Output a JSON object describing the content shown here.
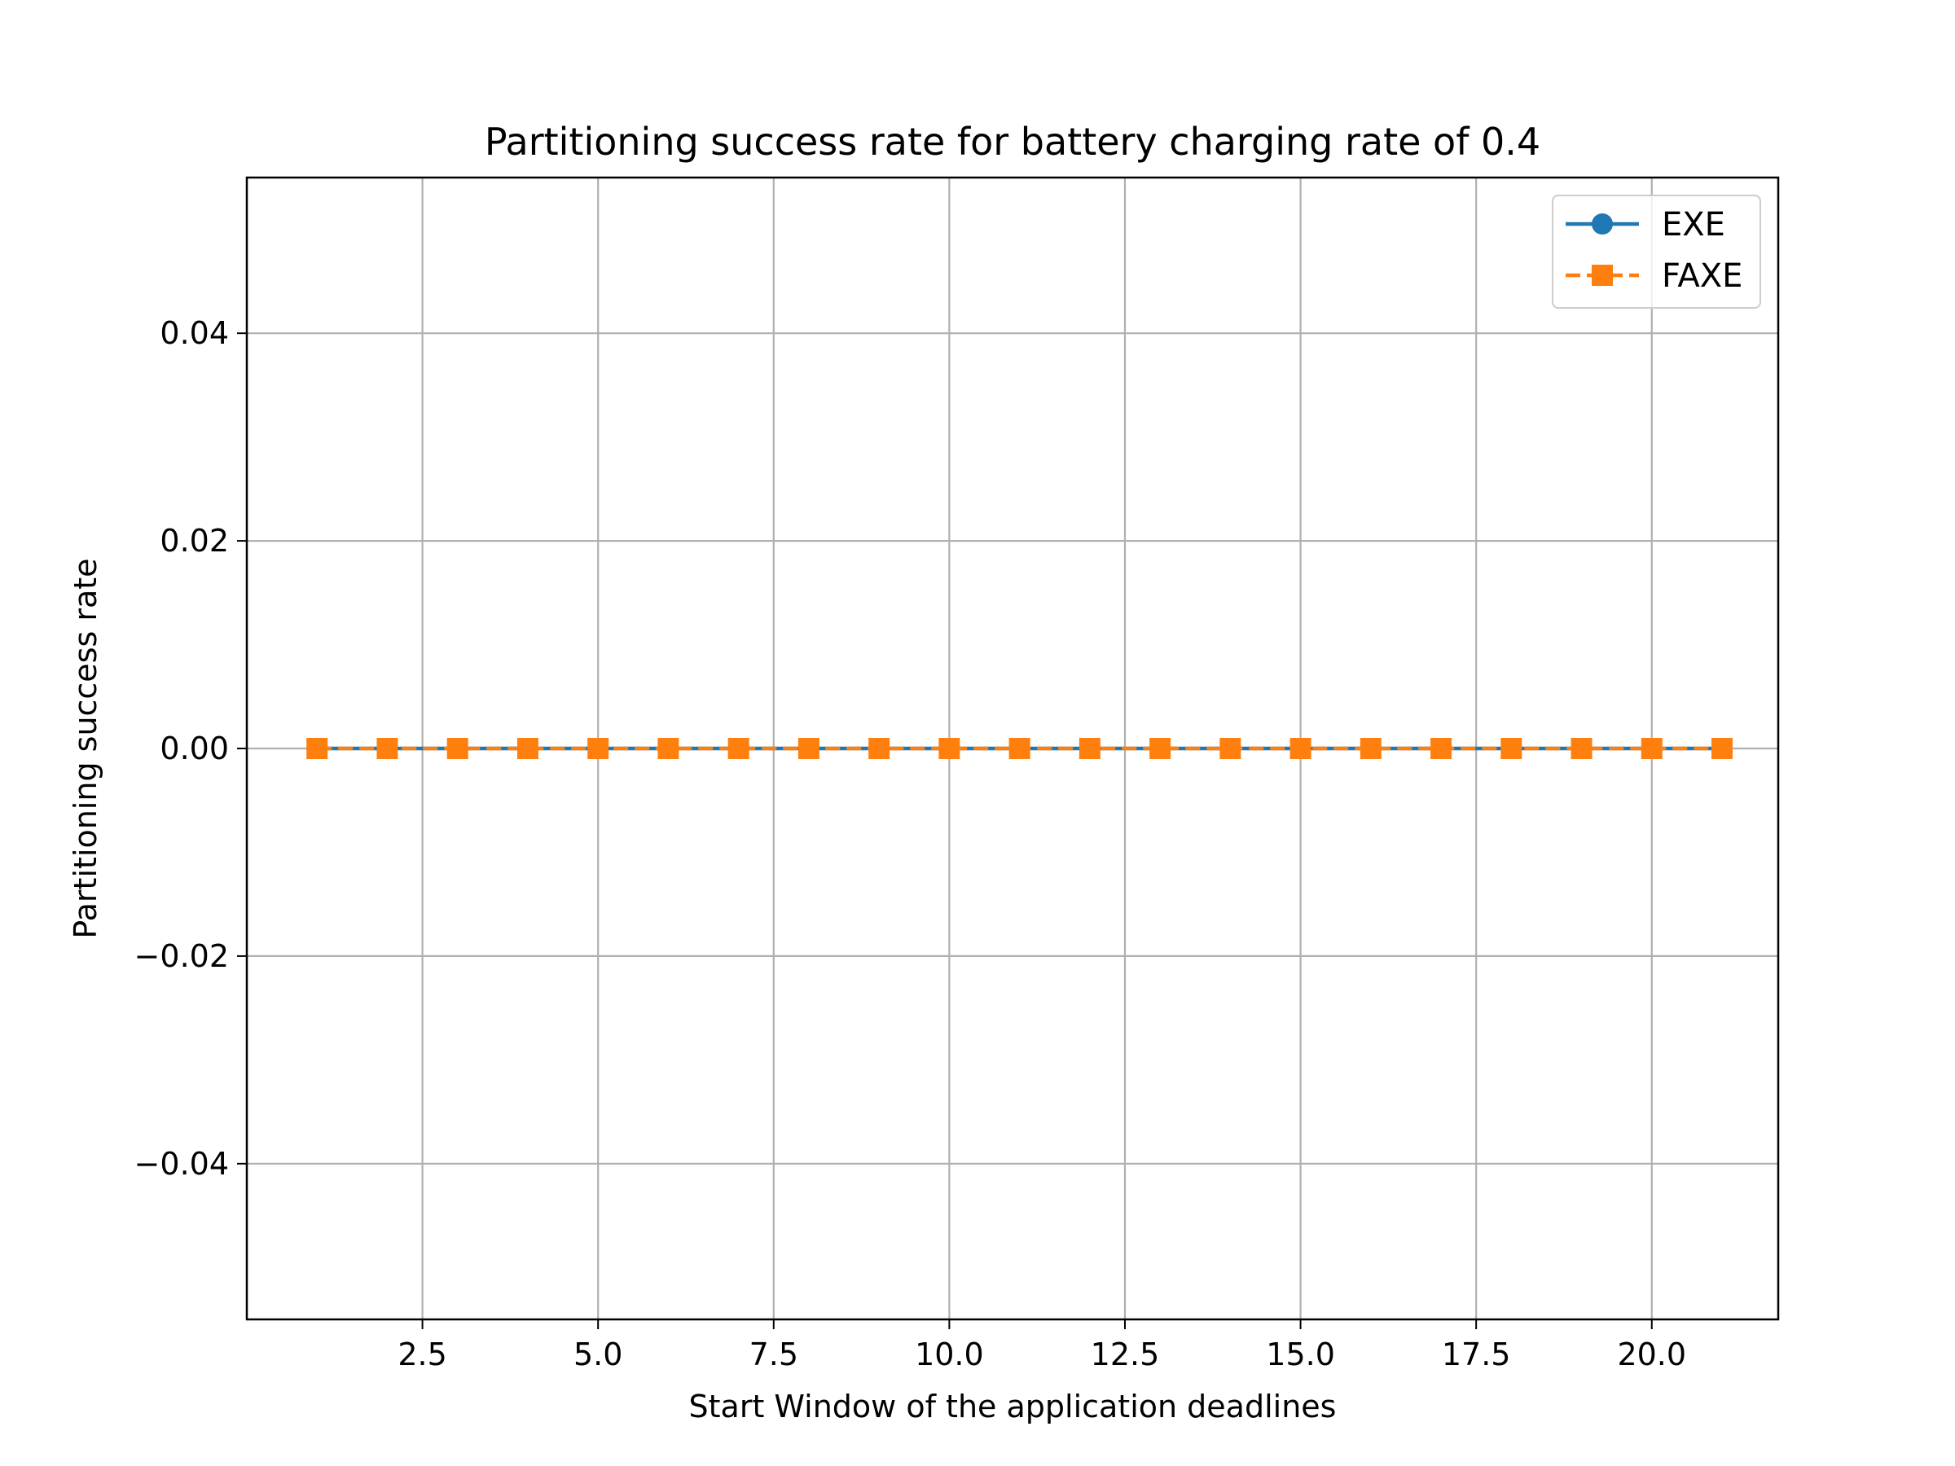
{
  "chart_data": {
    "type": "line",
    "title": "Partitioning success rate for battery charging rate of 0.4",
    "xlabel": "Start Window of the application deadlines",
    "ylabel": "Partitioning success rate",
    "xlim": [
      0.0,
      21.8
    ],
    "ylim": [
      -0.055,
      0.055
    ],
    "xticks": [
      2.5,
      5.0,
      7.5,
      10.0,
      12.5,
      15.0,
      17.5,
      20.0
    ],
    "xtick_labels": [
      "2.5",
      "5.0",
      "7.5",
      "10.0",
      "12.5",
      "15.0",
      "17.5",
      "20.0"
    ],
    "yticks": [
      -0.04,
      -0.02,
      0.0,
      0.02,
      0.04
    ],
    "ytick_labels": [
      "−0.04",
      "−0.02",
      "0.00",
      "0.02",
      "0.04"
    ],
    "grid": true,
    "legend_position": "top-right",
    "x": [
      1,
      2,
      3,
      4,
      5,
      6,
      7,
      8,
      9,
      10,
      11,
      12,
      13,
      14,
      15,
      16,
      17,
      18,
      19,
      20,
      21
    ],
    "series": [
      {
        "name": "EXE",
        "color": "#1f77b4",
        "marker": "circle",
        "linestyle": "solid",
        "values": [
          0,
          0,
          0,
          0,
          0,
          0,
          0,
          0,
          0,
          0,
          0,
          0,
          0,
          0,
          0,
          0,
          0,
          0,
          0,
          0,
          0
        ]
      },
      {
        "name": "FAXE",
        "color": "#ff7f0e",
        "marker": "square",
        "linestyle": "dashed",
        "values": [
          0,
          0,
          0,
          0,
          0,
          0,
          0,
          0,
          0,
          0,
          0,
          0,
          0,
          0,
          0,
          0,
          0,
          0,
          0,
          0,
          0
        ]
      }
    ]
  }
}
